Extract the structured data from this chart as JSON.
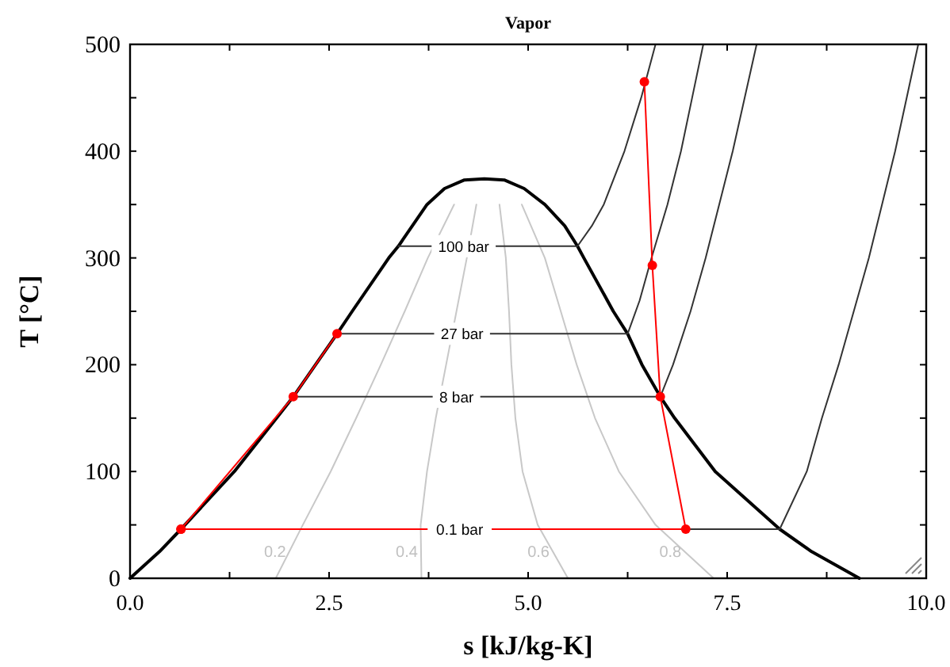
{
  "chart_data": {
    "type": "line",
    "title": "Vapor",
    "xlabel": "s [kJ/kg-K]",
    "ylabel": "T [°C]",
    "xlim": [
      0,
      10
    ],
    "ylim": [
      0,
      500
    ],
    "xticks": [
      {
        "value": 0,
        "label": "0.0"
      },
      {
        "value": 1.25,
        "label": null
      },
      {
        "value": 2.5,
        "label": "2.5"
      },
      {
        "value": 3.75,
        "label": null
      },
      {
        "value": 5,
        "label": "5.0"
      },
      {
        "value": 6.25,
        "label": null
      },
      {
        "value": 7.5,
        "label": "7.5"
      },
      {
        "value": 8.75,
        "label": null
      },
      {
        "value": 10,
        "label": "10.0"
      }
    ],
    "yticks": [
      0,
      {
        "value": 50,
        "label": null
      },
      100,
      {
        "value": 150,
        "label": null
      },
      200,
      {
        "value": 250,
        "label": null
      },
      300,
      {
        "value": 350,
        "label": null
      },
      400,
      {
        "value": 450,
        "label": null
      },
      500
    ],
    "grid": false,
    "series": [
      {
        "type": "line",
        "color": "#000000",
        "marker": "none",
        "x": [
          0,
          0.37,
          0.64,
          1.31,
          1.84,
          2.05,
          2.33,
          2.6,
          2.79,
          3.25,
          3.37,
          3.73,
          3.95,
          4.2,
          4.45,
          4.7,
          4.95,
          5.21,
          5.46,
          5.62,
          5.7,
          6.07,
          6.25,
          6.43,
          6.66,
          6.84,
          7.35,
          8.16,
          8.56,
          9.16
        ],
        "values": [
          0,
          25,
          46,
          100,
          150,
          170,
          200,
          229,
          250,
          300,
          311,
          350,
          365,
          373,
          374,
          373,
          365,
          350,
          330,
          311,
          300,
          250,
          229,
          200,
          170,
          150,
          100,
          46,
          25,
          0
        ]
      },
      {
        "type": "line",
        "color": "#c8c8c8",
        "marker": "none",
        "x": [
          1.83,
          2.17,
          2.52,
          2.84,
          3.15,
          3.45,
          3.74,
          4.07
        ],
        "values": [
          0,
          50,
          100,
          150,
          200,
          250,
          300,
          350
        ]
      },
      {
        "type": "line",
        "color": "#c8c8c8",
        "marker": "none",
        "x": [
          3.66,
          3.65,
          3.73,
          3.84,
          3.97,
          4.1,
          4.23,
          4.35
        ],
        "values": [
          0,
          50,
          100,
          150,
          200,
          250,
          300,
          350
        ]
      },
      {
        "type": "line",
        "color": "#c8c8c8",
        "marker": "none",
        "x": [
          5.5,
          5.12,
          4.93,
          4.84,
          4.79,
          4.76,
          4.72,
          4.64
        ],
        "values": [
          0,
          50,
          100,
          150,
          200,
          250,
          300,
          350
        ]
      },
      {
        "type": "line",
        "color": "#c8c8c8",
        "marker": "none",
        "x": [
          7.33,
          6.6,
          6.14,
          5.84,
          5.61,
          5.41,
          5.21,
          4.92
        ],
        "values": [
          0,
          50,
          100,
          150,
          200,
          250,
          300,
          350
        ]
      },
      {
        "type": "line",
        "color": "#333333",
        "marker": "none",
        "x": [
          3.37,
          5.62,
          5.8,
          5.95,
          6.21,
          6.42,
          6.6
        ],
        "values": [
          311,
          311,
          330,
          350,
          400,
          450,
          500
        ]
      },
      {
        "type": "line",
        "color": "#333333",
        "marker": "none",
        "x": [
          2.6,
          6.25,
          6.4,
          6.55,
          6.75,
          6.92,
          7.06,
          7.2
        ],
        "values": [
          229,
          229,
          260,
          300,
          350,
          400,
          450,
          500
        ]
      },
      {
        "type": "line",
        "color": "#333333",
        "marker": "none",
        "x": [
          2.05,
          6.66,
          6.82,
          7.04,
          7.23,
          7.57,
          7.87
        ],
        "values": [
          170,
          170,
          200,
          250,
          300,
          400,
          500
        ]
      },
      {
        "type": "line",
        "color": "#333333",
        "marker": "none",
        "x": [
          0.64,
          8.16,
          8.5,
          8.69,
          8.9,
          9.28,
          9.61,
          9.9
        ],
        "values": [
          46,
          46,
          100,
          150,
          200,
          300,
          400,
          500
        ]
      },
      {
        "type": "line",
        "color": "#ff0000",
        "marker": "circle",
        "x": [
          0.64,
          2.05,
          2.6,
          null,
          6.46,
          6.56,
          6.66,
          6.98,
          0.64
        ],
        "values": [
          46,
          170,
          229,
          null,
          465,
          293,
          170,
          46,
          46
        ]
      }
    ],
    "annotations": [
      {
        "text": "100 bar",
        "x": 4.19,
        "y": 311
      },
      {
        "text": "27 bar",
        "x": 4.17,
        "y": 229
      },
      {
        "text": "8 bar",
        "x": 4.1,
        "y": 170
      },
      {
        "text": "0.1 bar",
        "x": 4.14,
        "y": 46
      },
      {
        "text": "0.2",
        "x": 2.0,
        "y": 25
      },
      {
        "text": "0.4",
        "x": 3.655,
        "y": 25
      },
      {
        "text": "0.6",
        "x": 5.31,
        "y": 25
      },
      {
        "text": "0.8",
        "x": 6.965,
        "y": 25
      }
    ]
  }
}
